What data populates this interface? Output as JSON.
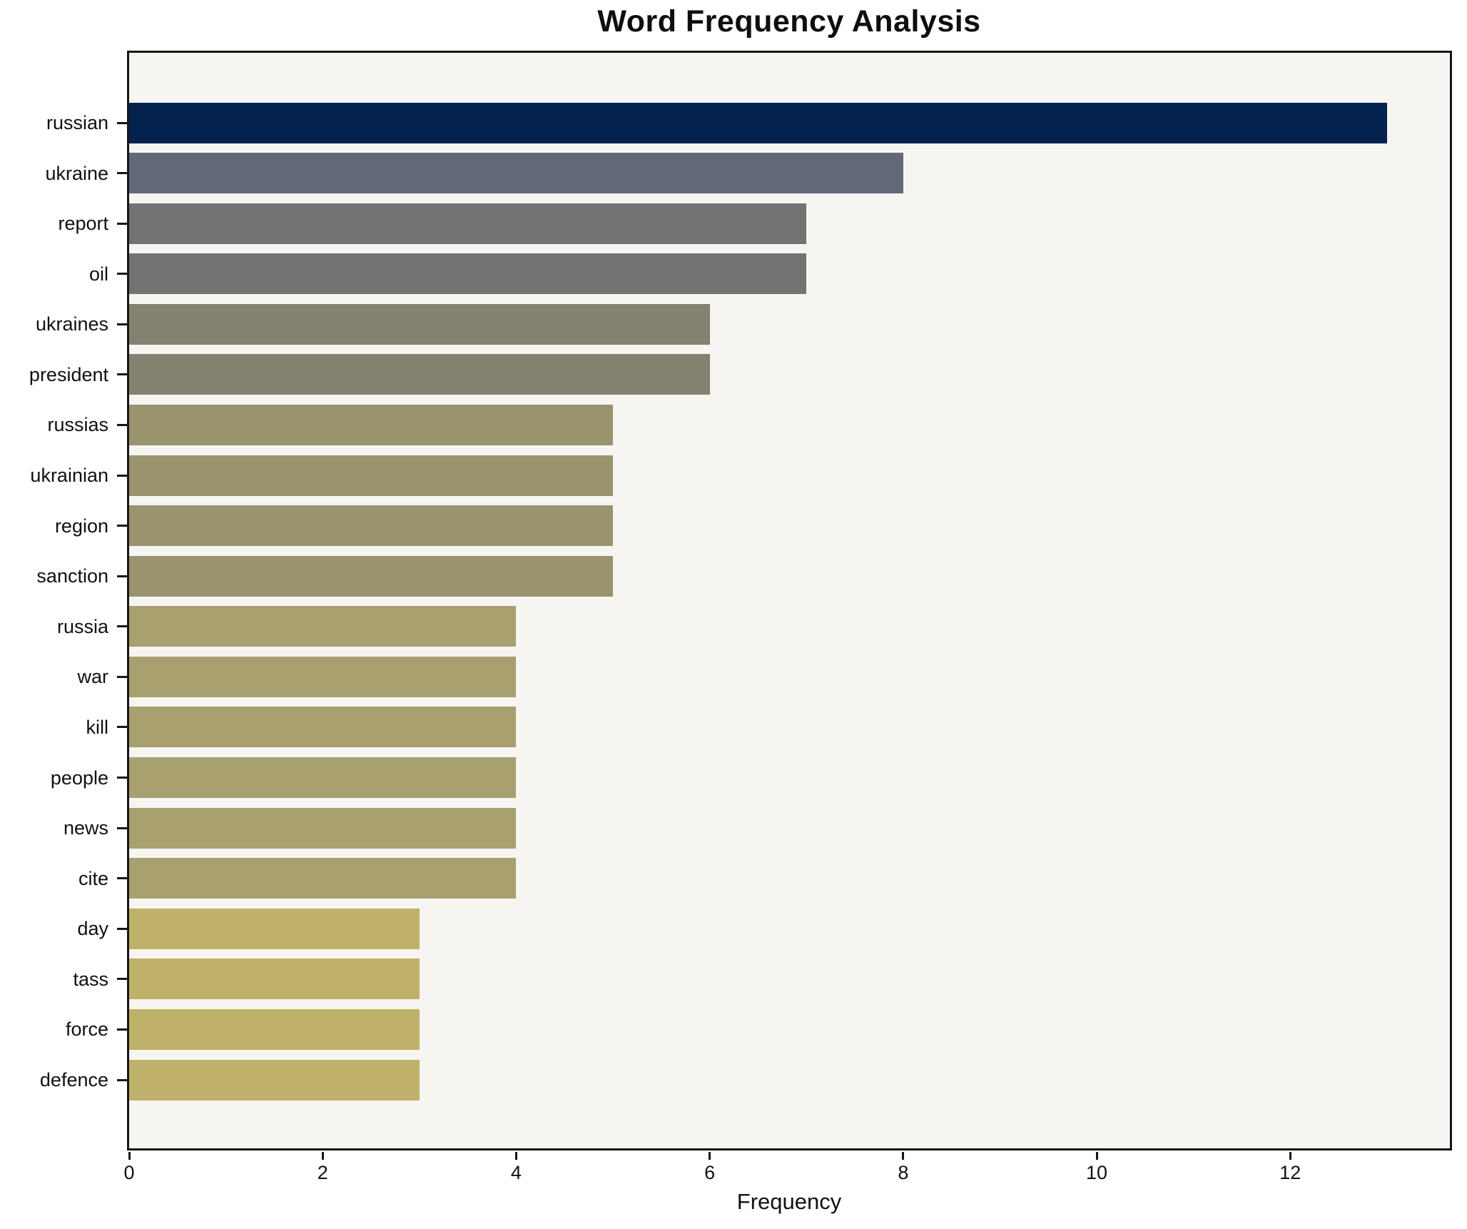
{
  "chart_data": {
    "type": "bar",
    "orientation": "horizontal",
    "title": "Word Frequency Analysis",
    "xlabel": "Frequency",
    "ylabel": "",
    "categories": [
      "russian",
      "ukraine",
      "report",
      "oil",
      "ukraines",
      "president",
      "russias",
      "ukrainian",
      "region",
      "sanction",
      "russia",
      "war",
      "kill",
      "people",
      "news",
      "cite",
      "day",
      "tass",
      "force",
      "defence"
    ],
    "values": [
      13,
      8,
      7,
      7,
      6,
      6,
      5,
      5,
      5,
      5,
      4,
      4,
      4,
      4,
      4,
      4,
      3,
      3,
      3,
      3
    ],
    "bar_colors": [
      "#03234e",
      "#636879",
      "#737373",
      "#737373",
      "#858170",
      "#858170",
      "#99936e",
      "#99936e",
      "#99936e",
      "#99936e",
      "#a8a06f",
      "#a8a06f",
      "#a8a06f",
      "#a8a06f",
      "#a8a06f",
      "#a8a06f",
      "#bfb169",
      "#bfb169",
      "#bfb169",
      "#bfb169"
    ],
    "xticks": [
      0,
      2,
      4,
      6,
      8,
      10,
      12
    ],
    "xlim": [
      0,
      13.65
    ],
    "grid": false,
    "legend_position": "none",
    "plot_background": "#f6f5f2",
    "page_background": "#ffffff",
    "spine_color": "#161616",
    "text_color": "#111111"
  }
}
